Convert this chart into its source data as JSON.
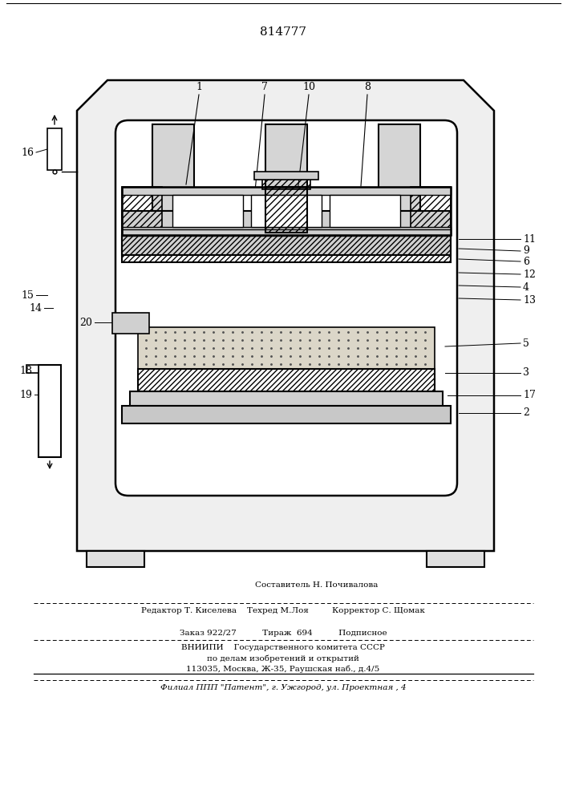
{
  "patent_number": "814777",
  "bg_color": "#ffffff",
  "lc": "#000000",
  "footer": {
    "line0": "Составитель Н. Почивалова",
    "line1": "Редактор Т. Киселева    Техред М.Лоя         Корректор С. Щомак",
    "line2": "Заказ 922/27          Тираж  694          Подписное",
    "line3": "ВНИИПИ    Государственного комитета СССР",
    "line4": "по делам изобретений и открытий",
    "line5": "113035, Москва, Ж-35, Раушская наб., д.4/5",
    "line6": "Филиал ППП \"Патент\", г. Ужгород, ул. Проектная , 4"
  }
}
